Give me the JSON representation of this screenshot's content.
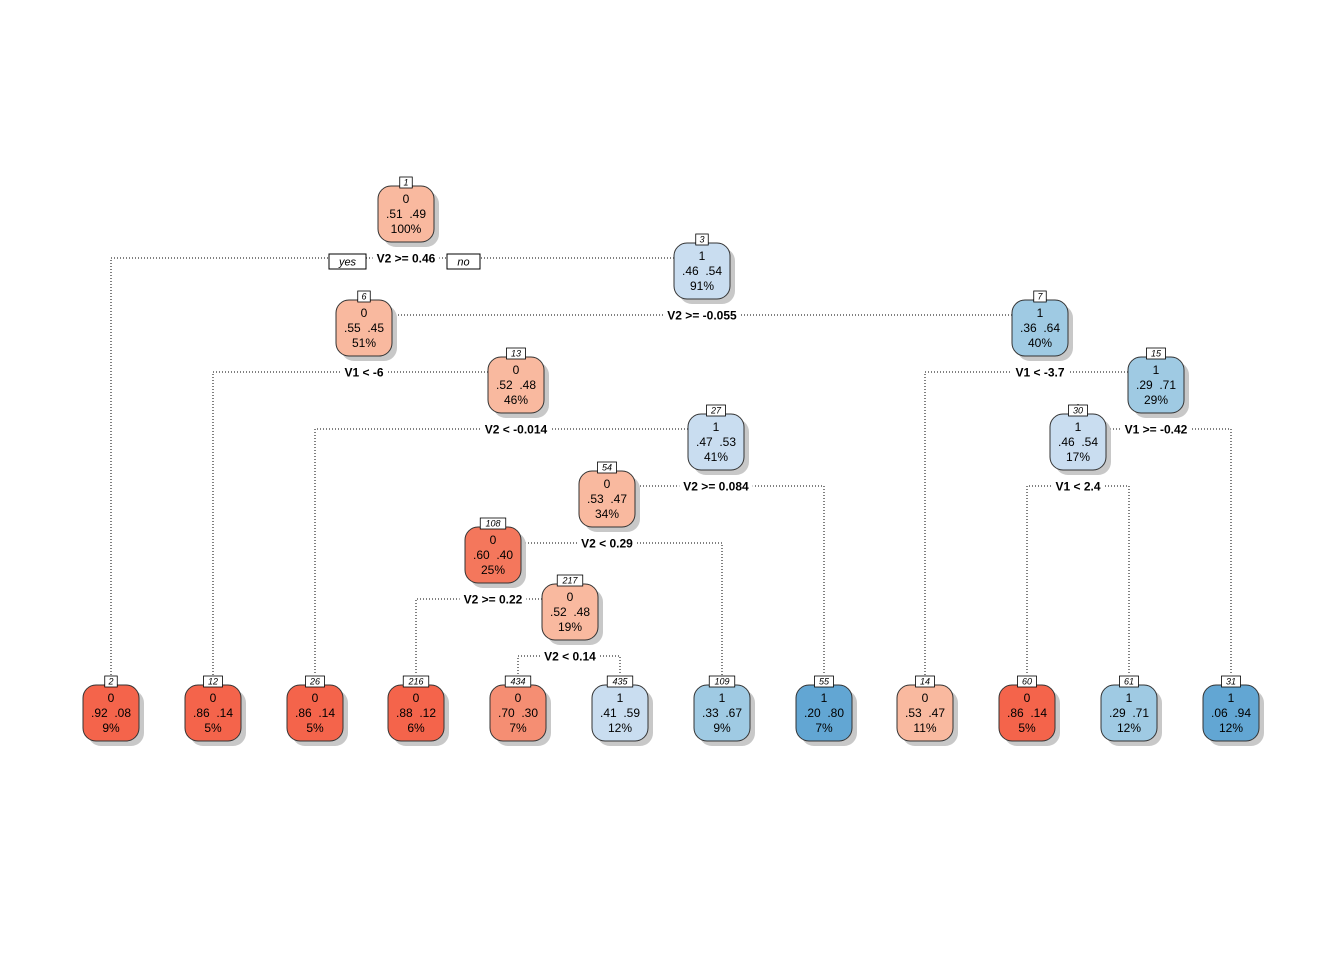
{
  "branch_labels": {
    "yes": "yes",
    "no": "no"
  },
  "nodes": [
    {
      "id": "1",
      "cls": "0",
      "p0": ".51",
      "p1": ".49",
      "pct": "100%",
      "fill": "#F9B99F"
    },
    {
      "id": "2",
      "cls": "0",
      "p0": ".92",
      "p1": ".08",
      "pct": "9%",
      "fill": "#F4644B"
    },
    {
      "id": "3",
      "cls": "1",
      "p0": ".46",
      "p1": ".54",
      "pct": "91%",
      "fill": "#C9DDF0"
    },
    {
      "id": "6",
      "cls": "0",
      "p0": ".55",
      "p1": ".45",
      "pct": "51%",
      "fill": "#F9B99F"
    },
    {
      "id": "7",
      "cls": "1",
      "p0": ".36",
      "p1": ".64",
      "pct": "40%",
      "fill": "#9FCAE3"
    },
    {
      "id": "12",
      "cls": "0",
      "p0": ".86",
      "p1": ".14",
      "pct": "5%",
      "fill": "#F4644B"
    },
    {
      "id": "13",
      "cls": "0",
      "p0": ".52",
      "p1": ".48",
      "pct": "46%",
      "fill": "#F9B99F"
    },
    {
      "id": "14",
      "cls": "0",
      "p0": ".53",
      "p1": ".47",
      "pct": "11%",
      "fill": "#F9B99F"
    },
    {
      "id": "15",
      "cls": "1",
      "p0": ".29",
      "p1": ".71",
      "pct": "29%",
      "fill": "#9FCAE3"
    },
    {
      "id": "26",
      "cls": "0",
      "p0": ".86",
      "p1": ".14",
      "pct": "5%",
      "fill": "#F4644B"
    },
    {
      "id": "27",
      "cls": "1",
      "p0": ".47",
      "p1": ".53",
      "pct": "41%",
      "fill": "#C9DDF0"
    },
    {
      "id": "30",
      "cls": "1",
      "p0": ".46",
      "p1": ".54",
      "pct": "17%",
      "fill": "#C9DDF0"
    },
    {
      "id": "31",
      "cls": "1",
      "p0": ".06",
      "p1": ".94",
      "pct": "12%",
      "fill": "#62A6D3"
    },
    {
      "id": "54",
      "cls": "0",
      "p0": ".53",
      "p1": ".47",
      "pct": "34%",
      "fill": "#F9B99F"
    },
    {
      "id": "55",
      "cls": "1",
      "p0": ".20",
      "p1": ".80",
      "pct": "7%",
      "fill": "#62A6D3"
    },
    {
      "id": "60",
      "cls": "0",
      "p0": ".86",
      "p1": ".14",
      "pct": "5%",
      "fill": "#F4644B"
    },
    {
      "id": "61",
      "cls": "1",
      "p0": ".29",
      "p1": ".71",
      "pct": "12%",
      "fill": "#9FCAE3"
    },
    {
      "id": "108",
      "cls": "0",
      "p0": ".60",
      "p1": ".40",
      "pct": "25%",
      "fill": "#F4775C"
    },
    {
      "id": "109",
      "cls": "1",
      "p0": ".33",
      "p1": ".67",
      "pct": "9%",
      "fill": "#9FCAE3"
    },
    {
      "id": "216",
      "cls": "0",
      "p0": ".88",
      "p1": ".12",
      "pct": "6%",
      "fill": "#F4644B"
    },
    {
      "id": "217",
      "cls": "0",
      "p0": ".52",
      "p1": ".48",
      "pct": "19%",
      "fill": "#F9B99F"
    },
    {
      "id": "434",
      "cls": "0",
      "p0": ".70",
      "p1": ".30",
      "pct": "7%",
      "fill": "#F58E73"
    },
    {
      "id": "435",
      "cls": "1",
      "p0": ".41",
      "p1": ".59",
      "pct": "12%",
      "fill": "#C9DDF0"
    }
  ],
  "splits": [
    {
      "node": "1",
      "label": "V2 >= 0.46",
      "left": "2",
      "right": "3"
    },
    {
      "node": "3",
      "label": "V2 >= -0.055",
      "left": "6",
      "right": "7"
    },
    {
      "node": "6",
      "label": "V1 < -6",
      "left": "12",
      "right": "13"
    },
    {
      "node": "13",
      "label": "V2 < -0.014",
      "left": "26",
      "right": "27"
    },
    {
      "node": "27",
      "label": "V2 >= 0.084",
      "left": "54",
      "right": "55"
    },
    {
      "node": "54",
      "label": "V2 < 0.29",
      "left": "108",
      "right": "109"
    },
    {
      "node": "108",
      "label": "V2 >= 0.22",
      "left": "216",
      "right": "217"
    },
    {
      "node": "217",
      "label": "V2 < 0.14",
      "left": "434",
      "right": "435"
    },
    {
      "node": "7",
      "label": "V1 < -3.7",
      "left": "14",
      "right": "15"
    },
    {
      "node": "15",
      "label": "V1 >= -0.42",
      "left": "30",
      "right": "31"
    },
    {
      "node": "30",
      "label": "V1 < 2.4",
      "left": "60",
      "right": "61"
    }
  ]
}
